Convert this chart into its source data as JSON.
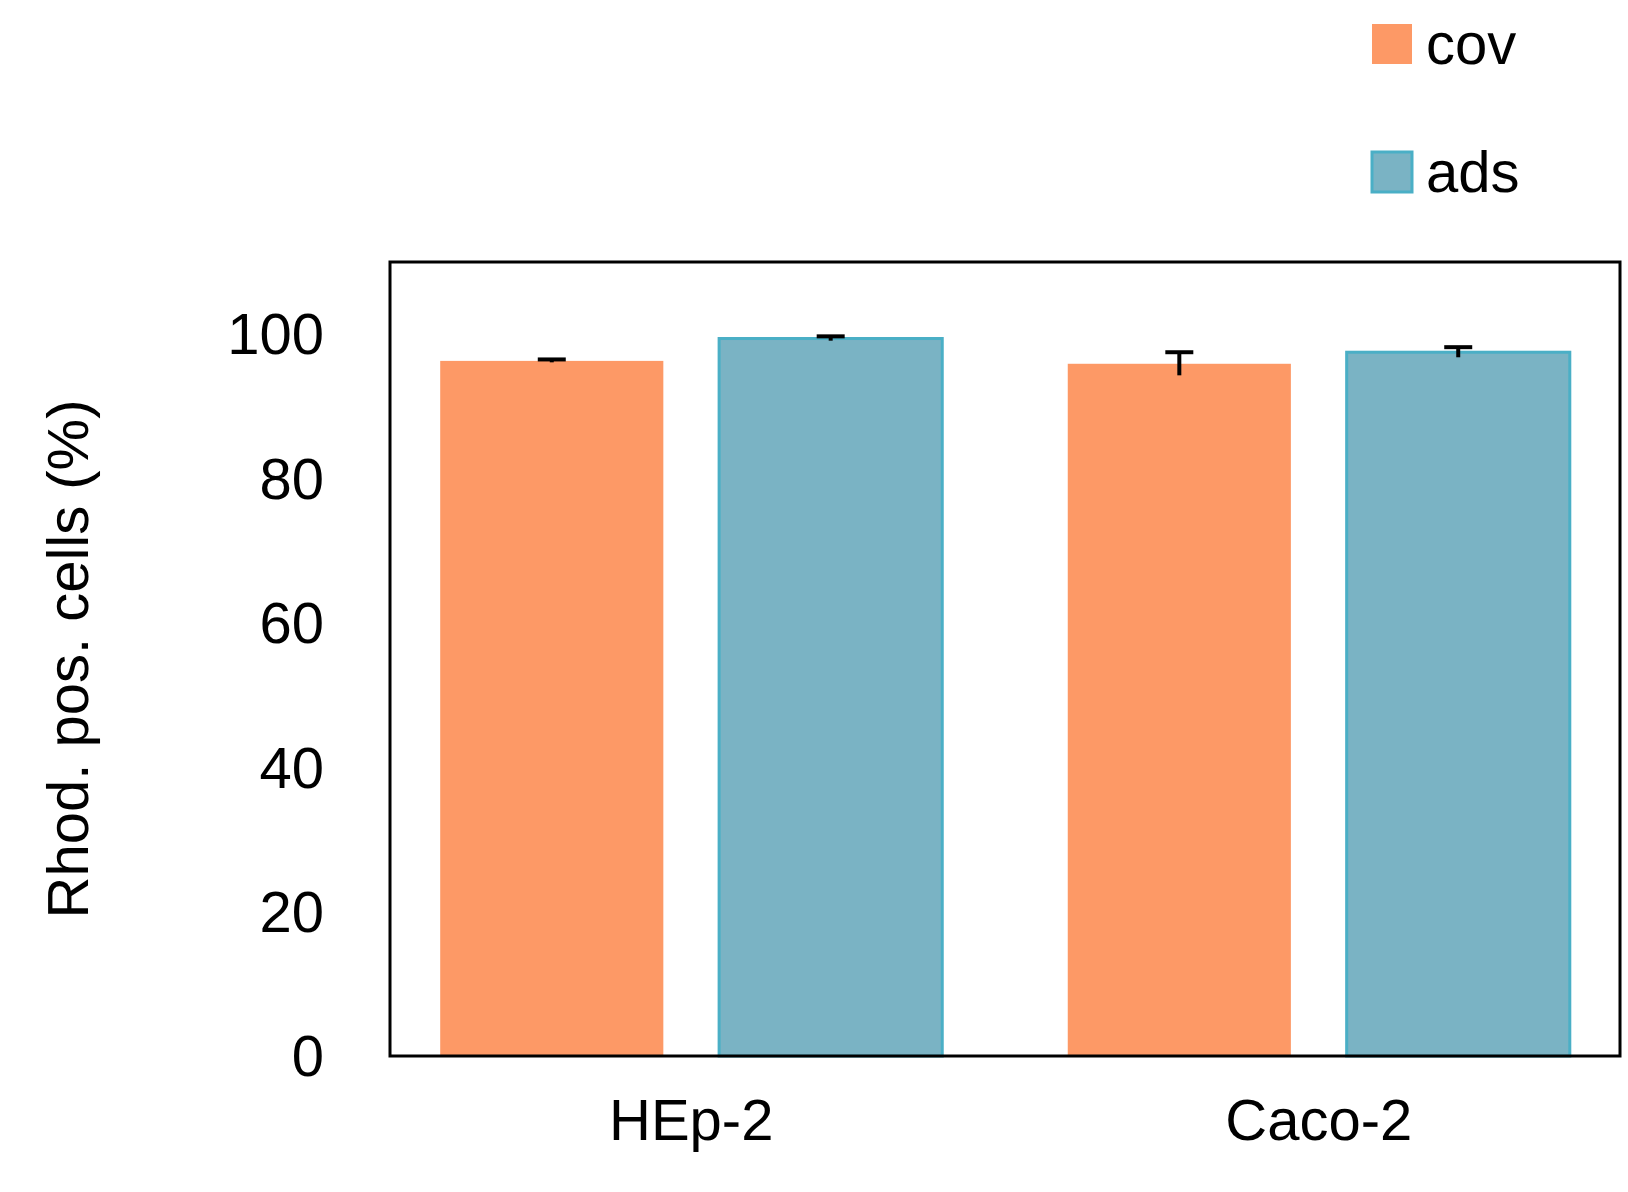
{
  "chart_data": {
    "type": "bar",
    "ylabel": "Rhod. pos. cells (%)",
    "categories": [
      "HEp-2",
      "Caco-2"
    ],
    "series": [
      {
        "name": "cov",
        "color": "#fd9966",
        "values": [
          96.3,
          95.9
        ],
        "errors": [
          0.2,
          1.6
        ]
      },
      {
        "name": "ads",
        "color": "#7ab3c4",
        "values": [
          99.4,
          97.5
        ],
        "errors": [
          0.3,
          0.7
        ]
      }
    ],
    "ylim": [
      0,
      110
    ],
    "yticks": [
      0,
      20,
      40,
      60,
      80,
      100
    ],
    "grid": false,
    "legend": "top right"
  }
}
